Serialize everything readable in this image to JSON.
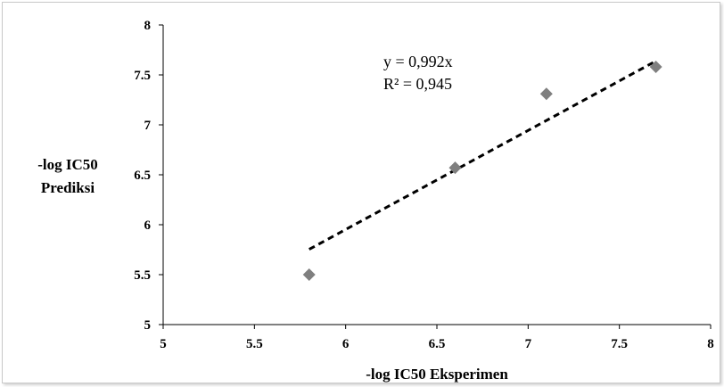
{
  "chart_data": {
    "type": "scatter",
    "xlabel": "-log IC50 Eksperimen",
    "ylabel_lines": [
      "-log IC50",
      "Prediksi"
    ],
    "xlim": [
      5,
      8
    ],
    "ylim": [
      5,
      8
    ],
    "x_ticks": [
      "5",
      "5.5",
      "6",
      "6.5",
      "7",
      "7.5",
      "8"
    ],
    "y_ticks": [
      "5",
      "5.5",
      "6",
      "6.5",
      "7",
      "7.5",
      "8"
    ],
    "points": [
      {
        "x": 5.8,
        "y": 5.5
      },
      {
        "x": 6.6,
        "y": 6.57
      },
      {
        "x": 7.1,
        "y": 7.31
      },
      {
        "x": 7.7,
        "y": 7.58
      }
    ],
    "trendline": {
      "slope": 0.992,
      "x_range": [
        5.8,
        7.7
      ],
      "style": "dashed"
    },
    "annotations": [
      "y = 0,992x",
      "R² = 0,945"
    ],
    "grid": false,
    "colors": {
      "marker": "#7f7f7f",
      "trendline": "#000000",
      "axis": "#000000"
    }
  }
}
